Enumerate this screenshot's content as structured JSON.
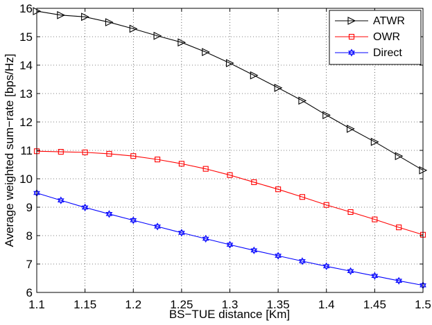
{
  "chart_data": {
    "type": "line",
    "title": "",
    "xlabel": "BS−TUE distance [Km]",
    "ylabel": "Average weighted sum−rate [bps/Hz]",
    "xlim": [
      1.1,
      1.5
    ],
    "ylim": [
      6,
      16
    ],
    "grid": "dotted",
    "legend_position": "top-right",
    "xticks": [
      1.1,
      1.15,
      1.2,
      1.25,
      1.3,
      1.35,
      1.4,
      1.45,
      1.5
    ],
    "xtick_labels": [
      "1.1",
      "1.15",
      "1.2",
      "1.25",
      "1.3",
      "1.35",
      "1.4",
      "1.45",
      "1.5"
    ],
    "yticks": [
      6,
      7,
      8,
      9,
      10,
      11,
      12,
      13,
      14,
      15,
      16
    ],
    "ytick_labels": [
      "6",
      "7",
      "8",
      "9",
      "10",
      "11",
      "12",
      "13",
      "14",
      "15",
      "16"
    ],
    "x": [
      1.1,
      1.125,
      1.15,
      1.175,
      1.2,
      1.225,
      1.25,
      1.275,
      1.3,
      1.325,
      1.35,
      1.375,
      1.4,
      1.425,
      1.45,
      1.475,
      1.5
    ],
    "series": [
      {
        "name": "ATWR",
        "color": "#000000",
        "marker": "triangle-right",
        "values": [
          15.9,
          15.76,
          15.7,
          15.51,
          15.28,
          15.03,
          14.8,
          14.46,
          14.07,
          13.64,
          13.2,
          12.75,
          12.24,
          11.76,
          11.3,
          10.8,
          10.3
        ]
      },
      {
        "name": "OWR",
        "color": "#ff0000",
        "marker": "square",
        "values": [
          10.97,
          10.95,
          10.93,
          10.88,
          10.8,
          10.68,
          10.53,
          10.35,
          10.13,
          9.88,
          9.63,
          9.36,
          9.08,
          8.83,
          8.57,
          8.29,
          8.03
        ]
      },
      {
        "name": "Direct",
        "color": "#0000ff",
        "marker": "hexagram",
        "values": [
          9.5,
          9.24,
          8.99,
          8.76,
          8.54,
          8.32,
          8.1,
          7.89,
          7.68,
          7.48,
          7.29,
          7.1,
          6.92,
          6.75,
          6.58,
          6.41,
          6.25
        ]
      }
    ]
  }
}
